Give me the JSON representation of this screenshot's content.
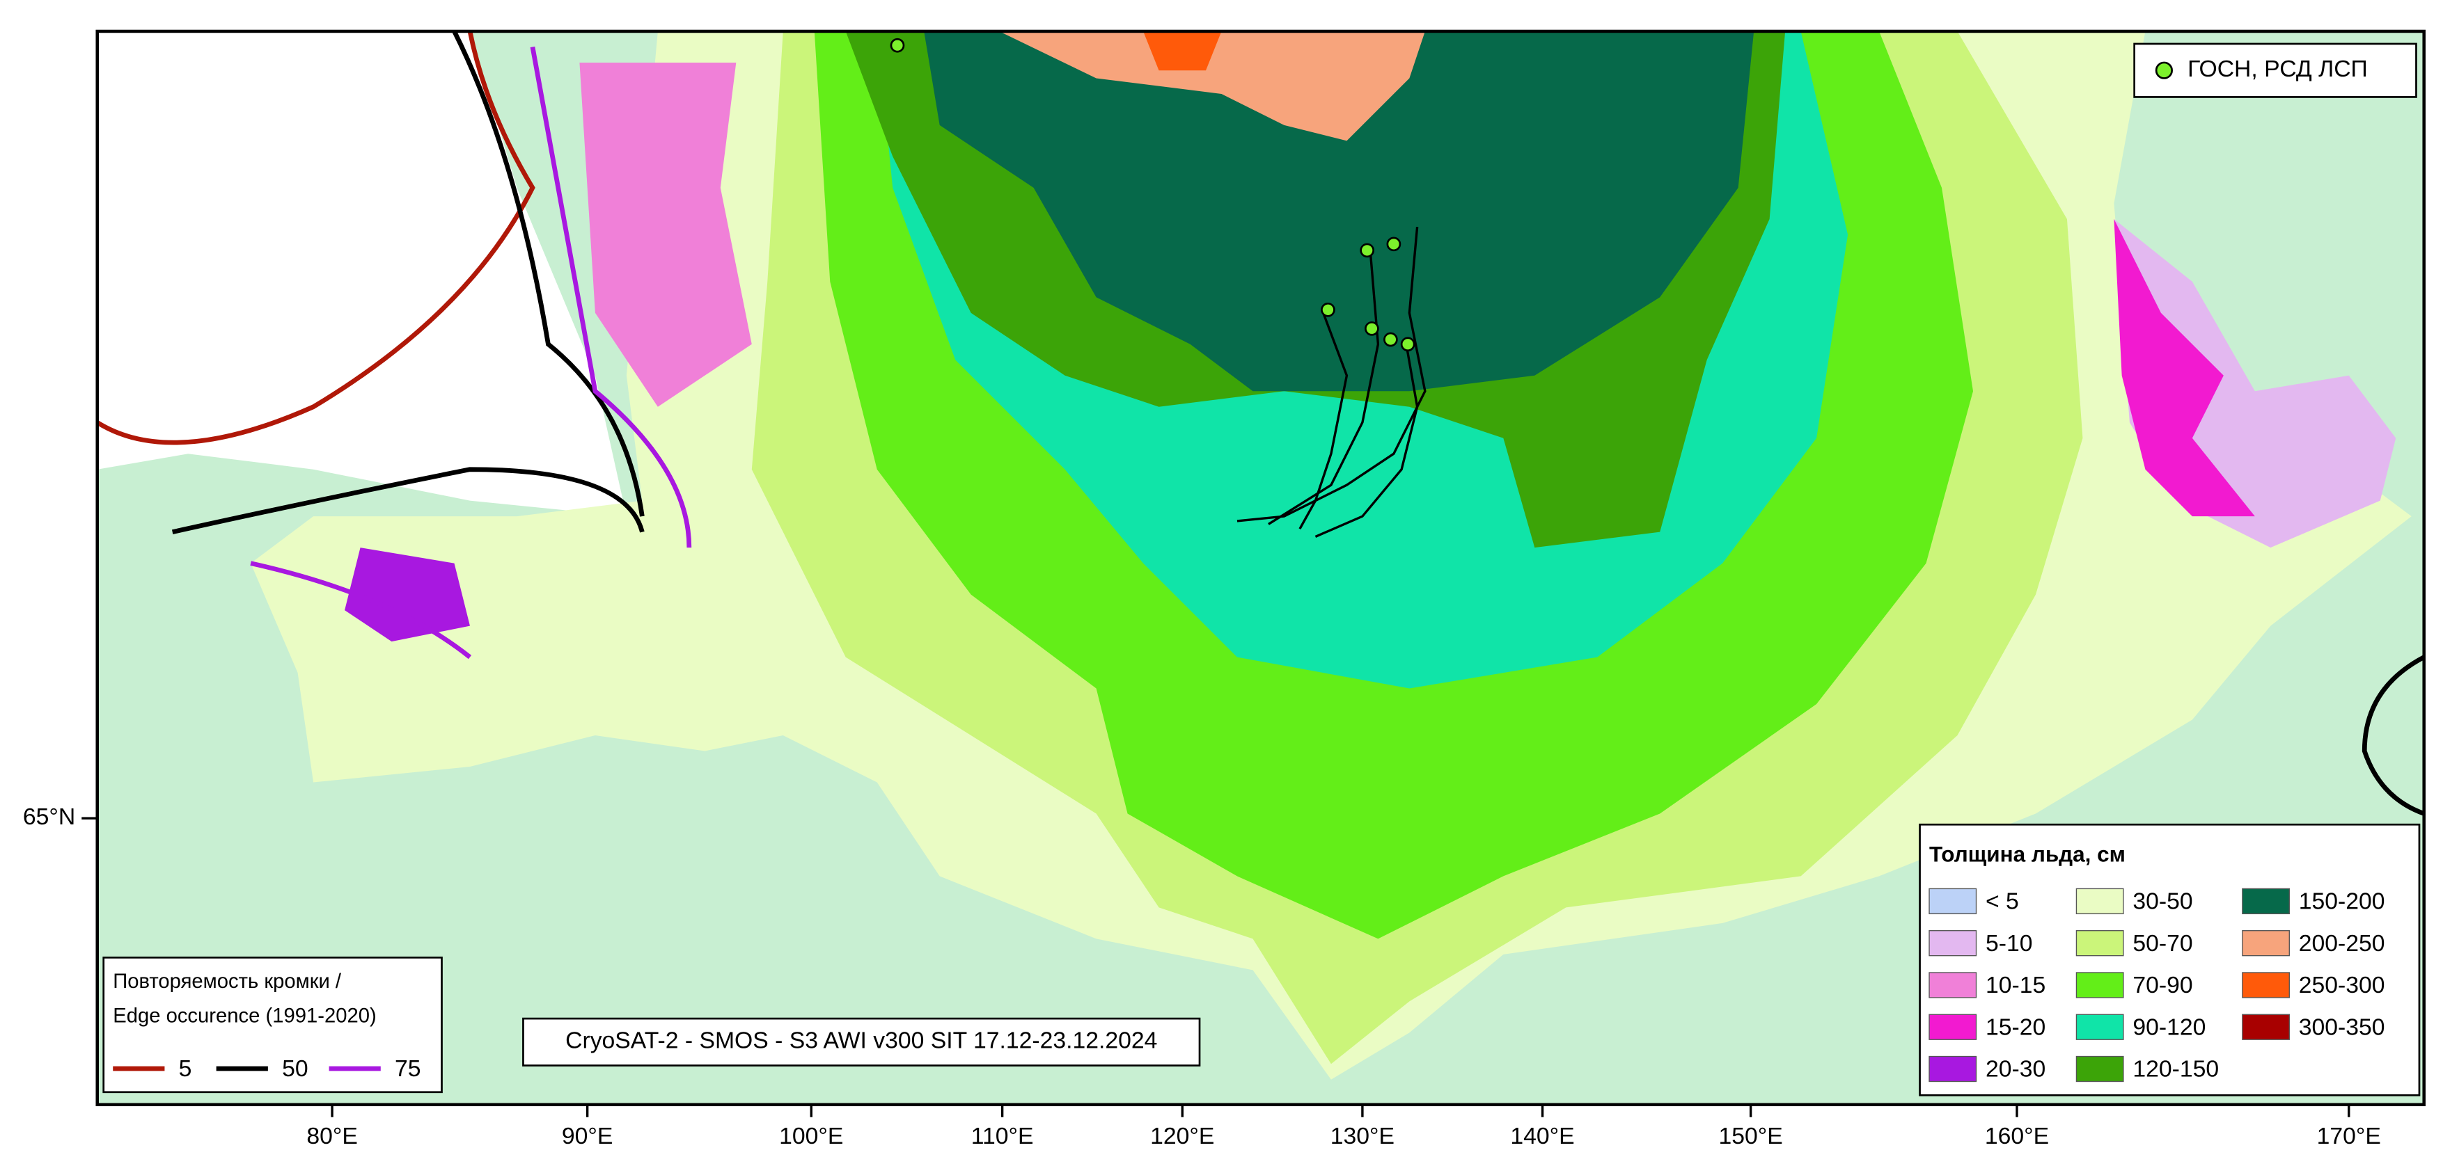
{
  "map": {
    "lon_labels": [
      "80°E",
      "90°E",
      "100°E",
      "110°E",
      "120°E",
      "130°E",
      "140°E",
      "150°E",
      "160°E",
      "170°E"
    ],
    "lat_labels": [
      "65°N"
    ],
    "caption": "CryoSAT-2 - SMOS - S3 AWI v300 SIT 17.12-23.12.2024",
    "points_legend": {
      "label": "ГОСН, РСД ЛСП",
      "color": "#7cf02c"
    },
    "thickness_legend": {
      "title": "Толщина льда, см",
      "items": [
        {
          "label": "< 5",
          "color": "#bcd2f7"
        },
        {
          "label": "5-10",
          "color": "#e3b8f0"
        },
        {
          "label": "10-15",
          "color": "#f080d8"
        },
        {
          "label": "15-20",
          "color": "#f21ad0"
        },
        {
          "label": "20-30",
          "color": "#a818e0"
        },
        {
          "label": "30-50",
          "color": "#eafcc4"
        },
        {
          "label": "50-70",
          "color": "#cbf57a"
        },
        {
          "label": "70-90",
          "color": "#63ee18"
        },
        {
          "label": "90-120",
          "color": "#10e4a8"
        },
        {
          "label": "120-150",
          "color": "#3ca408"
        },
        {
          "label": "150-200",
          "color": "#06694a"
        },
        {
          "label": "200-250",
          "color": "#f7a47c"
        },
        {
          "label": "250-300",
          "color": "#ff5a0a"
        },
        {
          "label": "300-350",
          "color": "#a80000"
        }
      ]
    },
    "edge_legend": {
      "title": [
        "Повторяемость кромки /",
        "Edge occurence (1991-2020)"
      ],
      "items": [
        {
          "label": "5",
          "color": "#b01808"
        },
        {
          "label": "50",
          "color": "#000000"
        },
        {
          "label": "75",
          "color": "#a818e0"
        }
      ]
    }
  }
}
